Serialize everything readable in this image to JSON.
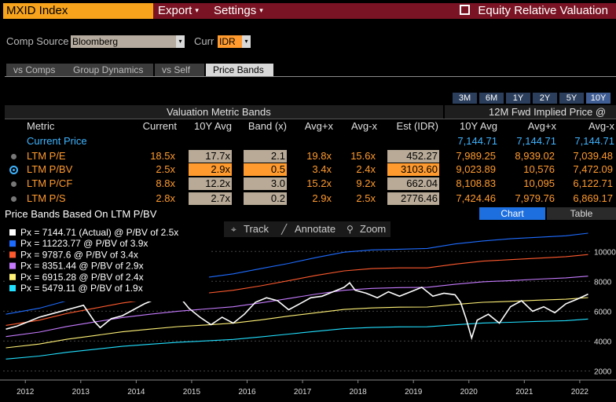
{
  "header": {
    "ticker": "MXID Index",
    "menu_export": "Export",
    "menu_settings": "Settings",
    "app_title": "Equity Relative Valuation",
    "caret": "▾"
  },
  "comp": {
    "source_label": "Comp Source",
    "source_value": "Bloomberg",
    "curr_label": "Curr",
    "curr_value": "IDR"
  },
  "tabs": [
    "vs Comps",
    "Group Dynamics",
    "vs Self",
    "Price Bands"
  ],
  "periods": [
    "3M",
    "6M",
    "1Y",
    "2Y",
    "5Y",
    "10Y"
  ],
  "table": {
    "group_left": "Valuation Metric Bands",
    "group_right": "12M Fwd Implied Price @",
    "columns": [
      "Metric",
      "Current",
      "10Y Avg",
      "Band (x)",
      "Avg+x",
      "Avg-x",
      "Est (IDR)",
      "10Y Avg",
      "Avg+x",
      "Avg-x"
    ],
    "current_price": {
      "label": "Current Price",
      "v1": "7,144.71",
      "v2": "7,144.71",
      "v3": "7,144.71"
    },
    "rows": [
      {
        "metric": "LTM P/E",
        "current": "18.5x",
        "avg": "17.7x",
        "band": "2.1",
        "plus": "19.8x",
        "minus": "15.6x",
        "est": "452.27",
        "p1": "7,989.25",
        "p2": "8,939.02",
        "p3": "7,039.48"
      },
      {
        "metric": "LTM P/BV",
        "current": "2.5x",
        "avg": "2.9x",
        "band": "0.5",
        "plus": "3.4x",
        "minus": "2.4x",
        "est": "3103.60",
        "p1": "9,023.89",
        "p2": "10,576",
        "p3": "7,472.09"
      },
      {
        "metric": "LTM P/CF",
        "current": "8.8x",
        "avg": "12.2x",
        "band": "3.0",
        "plus": "15.2x",
        "minus": "9.2x",
        "est": "662.04",
        "p1": "8,108.83",
        "p2": "10,095",
        "p3": "6,122.71"
      },
      {
        "metric": "LTM P/S",
        "current": "2.8x",
        "avg": "2.7x",
        "band": "0.2",
        "plus": "2.9x",
        "minus": "2.5x",
        "est": "2776.46",
        "p1": "7,424.46",
        "p2": "7,979.76",
        "p3": "6,869.17"
      }
    ]
  },
  "chart_section": {
    "title": "Price Bands Based On LTM P/BV",
    "chart_btn": "Chart",
    "table_btn": "Table",
    "track": "Track",
    "annotate": "Annotate",
    "zoom": "Zoom"
  },
  "chart_data": {
    "type": "line",
    "x_ticks": [
      "2012",
      "2013",
      "2014",
      "2015",
      "2016",
      "2017",
      "2018",
      "2019",
      "2020",
      "2021",
      "2022"
    ],
    "y_ticks": [
      2000,
      4000,
      6000,
      8000,
      10000
    ],
    "ylim": [
      1500,
      11800
    ],
    "legend": [
      {
        "text": "Px = 7144.71 (Actual) @ P/BV of 2.5x",
        "color": "#ffffff"
      },
      {
        "text": "Px = 11223.77 @ P/BV of 3.9x",
        "color": "#1e6cff"
      },
      {
        "text": "Px = 9787.6 @ P/BV of 3.4x",
        "color": "#ff5a2e"
      },
      {
        "text": "Px = 8351.44 @ P/BV of 2.9x",
        "color": "#c67bff"
      },
      {
        "text": "Px = 6915.28 @ P/BV of 2.4x",
        "color": "#fff176"
      },
      {
        "text": "Px = 5479.11 @ P/BV of 1.9x",
        "color": "#21e0ff"
      }
    ],
    "series": [
      {
        "color": "#1e6cff",
        "x": [
          2011.8,
          2012.4,
          2012.9,
          2013.4,
          2013.9,
          2014.4,
          2014.9,
          2015.4,
          2015.9,
          2016.4,
          2016.9,
          2017.4,
          2017.9,
          2018.4,
          2018.9,
          2019.4,
          2019.9,
          2020.4,
          2020.9,
          2021.4,
          2021.9,
          2022.3
        ],
        "y": [
          5800,
          6200,
          6700,
          7100,
          7500,
          7800,
          8050,
          8250,
          8500,
          8850,
          9200,
          9600,
          9950,
          10100,
          10150,
          10200,
          10500,
          10700,
          10850,
          10950,
          11050,
          11220
        ]
      },
      {
        "color": "#ff5a2e",
        "x": [
          2011.8,
          2012.4,
          2012.9,
          2013.4,
          2013.9,
          2014.4,
          2014.9,
          2015.4,
          2015.9,
          2016.4,
          2016.9,
          2017.4,
          2017.9,
          2018.4,
          2018.9,
          2019.4,
          2019.9,
          2020.4,
          2020.9,
          2021.4,
          2021.9,
          2022.3
        ],
        "y": [
          5050,
          5400,
          5850,
          6200,
          6550,
          6800,
          7050,
          7200,
          7400,
          7700,
          8050,
          8400,
          8700,
          8850,
          8900,
          8900,
          9150,
          9350,
          9450,
          9550,
          9650,
          9790
        ]
      },
      {
        "color": "#c67bff",
        "x": [
          2011.8,
          2012.4,
          2012.9,
          2013.4,
          2013.9,
          2014.4,
          2014.9,
          2015.4,
          2015.9,
          2016.4,
          2016.9,
          2017.4,
          2017.9,
          2018.4,
          2018.9,
          2019.4,
          2019.9,
          2020.4,
          2020.9,
          2021.4,
          2021.9,
          2022.3
        ],
        "y": [
          4300,
          4600,
          4980,
          5280,
          5580,
          5800,
          6000,
          6150,
          6300,
          6560,
          6850,
          7150,
          7400,
          7530,
          7580,
          7600,
          7800,
          7970,
          8050,
          8150,
          8230,
          8350
        ]
      },
      {
        "color": "#fff176",
        "x": [
          2011.8,
          2012.4,
          2012.9,
          2013.4,
          2013.9,
          2014.4,
          2014.9,
          2015.4,
          2015.9,
          2016.4,
          2016.9,
          2017.4,
          2017.9,
          2018.4,
          2018.9,
          2019.4,
          2019.9,
          2020.4,
          2020.9,
          2021.4,
          2021.9,
          2022.3
        ],
        "y": [
          3550,
          3800,
          4120,
          4370,
          4620,
          4800,
          4970,
          5080,
          5200,
          5420,
          5670,
          5900,
          6120,
          6220,
          6270,
          6280,
          6450,
          6600,
          6660,
          6740,
          6800,
          6915
        ]
      },
      {
        "color": "#21e0ff",
        "x": [
          2011.8,
          2012.4,
          2012.9,
          2013.4,
          2013.9,
          2014.4,
          2014.9,
          2015.4,
          2015.9,
          2016.4,
          2016.9,
          2017.4,
          2017.9,
          2018.4,
          2018.9,
          2019.4,
          2019.9,
          2020.4,
          2020.9,
          2021.4,
          2021.9,
          2022.3
        ],
        "y": [
          2800,
          3000,
          3250,
          3450,
          3650,
          3790,
          3920,
          4010,
          4110,
          4280,
          4470,
          4660,
          4830,
          4910,
          4950,
          4960,
          5090,
          5210,
          5260,
          5320,
          5370,
          5480
        ]
      },
      {
        "color": "#ffffff",
        "x": [
          2011.8,
          2012.0,
          2012.2,
          2012.4,
          2012.6,
          2012.8,
          2013.0,
          2013.2,
          2013.4,
          2013.5,
          2013.7,
          2013.9,
          2014.1,
          2014.3,
          2014.5,
          2014.7,
          2014.9,
          2015.1,
          2015.3,
          2015.5,
          2015.7,
          2015.9,
          2016.1,
          2016.3,
          2016.5,
          2016.7,
          2016.9,
          2017.1,
          2017.3,
          2017.5,
          2017.7,
          2017.9,
          2018.0,
          2018.1,
          2018.3,
          2018.5,
          2018.7,
          2018.9,
          2019.1,
          2019.3,
          2019.5,
          2019.7,
          2019.9,
          2020.0,
          2020.1,
          2020.2,
          2020.3,
          2020.5,
          2020.7,
          2020.9,
          2021.1,
          2021.3,
          2021.5,
          2021.7,
          2021.9,
          2022.1,
          2022.3
        ],
        "y": [
          4800,
          5000,
          5300,
          5600,
          5800,
          6000,
          6200,
          6400,
          5300,
          4900,
          5500,
          5700,
          6100,
          6500,
          6800,
          7000,
          7100,
          6200,
          5600,
          5100,
          5600,
          5200,
          5800,
          6600,
          6900,
          6700,
          6100,
          6500,
          6900,
          7000,
          7300,
          7600,
          7900,
          7400,
          7200,
          6900,
          7300,
          7000,
          7300,
          7600,
          7000,
          7200,
          7100,
          6600,
          5500,
          4200,
          5400,
          5800,
          5200,
          6300,
          6700,
          6000,
          6300,
          5900,
          6500,
          6800,
          7145
        ]
      }
    ]
  }
}
